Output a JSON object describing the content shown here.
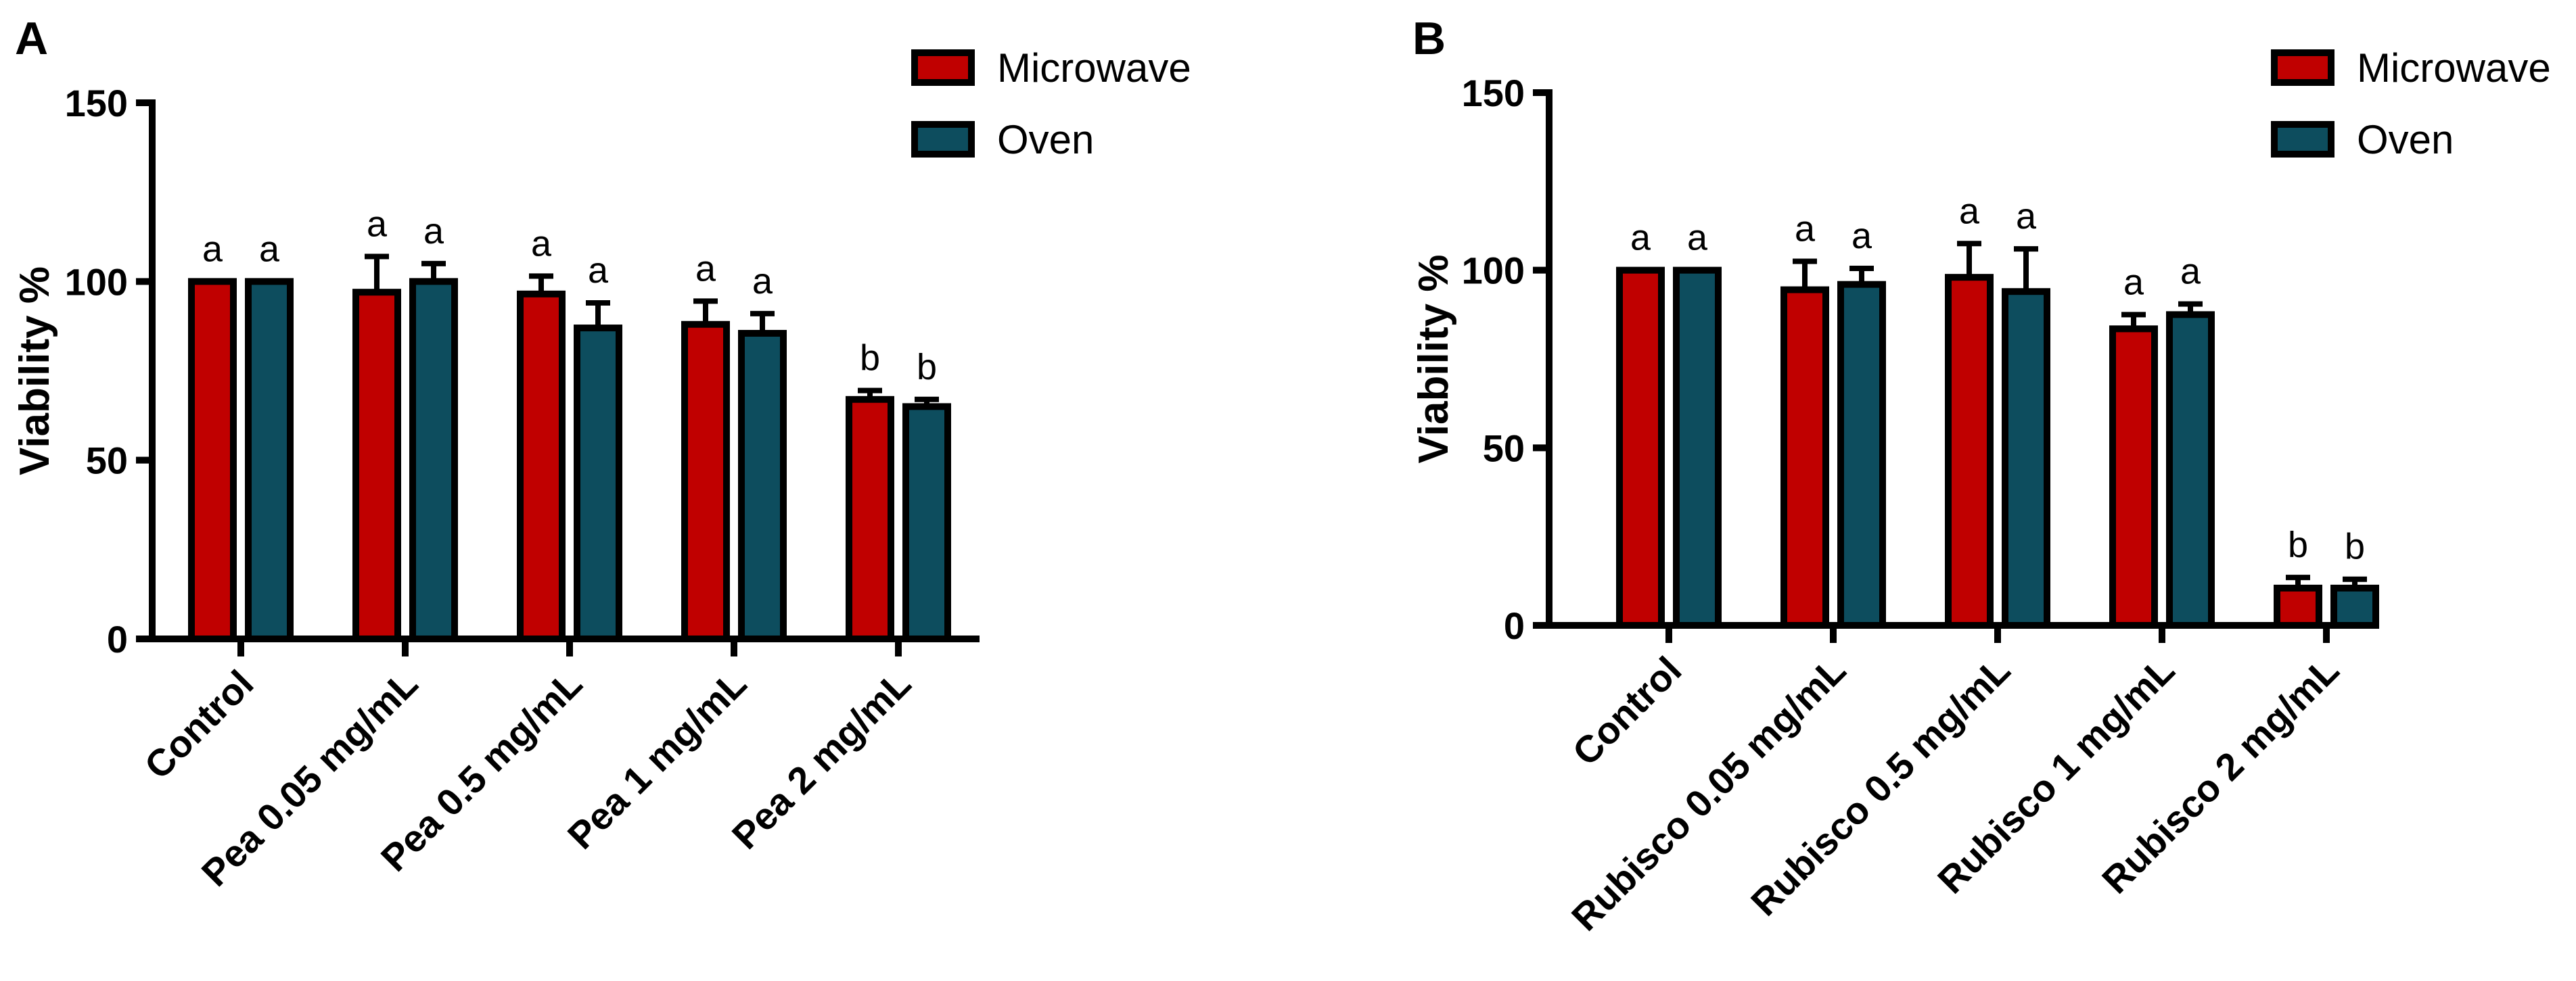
{
  "chart_data": [
    {
      "type": "bar",
      "panel": "A",
      "ylabel": "Viability %",
      "ylim": [
        0,
        150
      ],
      "yticks": [
        "0",
        "50",
        "100",
        "150"
      ],
      "categories": [
        "Control",
        "Pea 0.05 mg/mL",
        "Pea 0.5 mg/mL",
        "Pea 1 mg/mL",
        "Pea 2 mg/mL"
      ],
      "series": [
        {
          "name": "Microwave",
          "color": "#c00000",
          "values": [
            100,
            97,
            96.5,
            88,
            67
          ],
          "errors": [
            0,
            10,
            5,
            6.5,
            2.5
          ],
          "labels": [
            "a",
            "a",
            "a",
            "a",
            "b"
          ]
        },
        {
          "name": "Oven",
          "color": "#0d4d5e",
          "values": [
            100,
            100,
            87,
            85.5,
            65
          ],
          "errors": [
            0,
            5,
            7,
            5.5,
            2
          ],
          "labels": [
            "a",
            "a",
            "a",
            "a",
            "b"
          ]
        }
      ],
      "legend": [
        "Microwave",
        "Oven"
      ]
    },
    {
      "type": "bar",
      "panel": "B",
      "ylabel": "Viability %",
      "ylim": [
        0,
        150
      ],
      "yticks": [
        "0",
        "50",
        "100",
        "150"
      ],
      "categories": [
        "Control",
        "Rubisco 0.05 mg/mL",
        "Rubisco 0.5 mg/mL",
        "Rubisco 1 mg/mL",
        "Rubisco 2 mg/mL"
      ],
      "series": [
        {
          "name": "Microwave",
          "color": "#c00000",
          "values": [
            100,
            94.5,
            98,
            83.5,
            10.5
          ],
          "errors": [
            0,
            8,
            9.5,
            4,
            3
          ],
          "labels": [
            "a",
            "a",
            "a",
            "a",
            "b"
          ]
        },
        {
          "name": "Oven",
          "color": "#0d4d5e",
          "values": [
            100,
            96,
            94,
            87.5,
            10.5
          ],
          "errors": [
            0,
            4.5,
            12,
            3,
            2.5
          ],
          "labels": [
            "a",
            "a",
            "a",
            "a",
            "b"
          ]
        }
      ],
      "legend": [
        "Microwave",
        "Oven"
      ]
    }
  ]
}
